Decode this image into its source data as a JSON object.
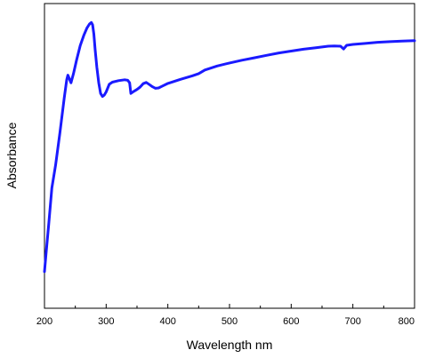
{
  "chart_data": {
    "type": "line",
    "title": "",
    "xlabel": "Wavelength nm",
    "ylabel": "Absorbance",
    "xlim": [
      200,
      800
    ],
    "ylim": [
      0,
      1
    ],
    "xticks": [
      200,
      300,
      400,
      500,
      600,
      700,
      800
    ],
    "y_tick_labels_shown": false,
    "grid": false,
    "legend": "none",
    "series": [
      {
        "color": "#1a1aff",
        "x": [
          200,
          203,
          207,
          212,
          218,
          225,
          232,
          236,
          238,
          240,
          243,
          247,
          252,
          258,
          264,
          269,
          273,
          276,
          278,
          280,
          282,
          285,
          288,
          291,
          294,
          297,
          300,
          305,
          310,
          320,
          330,
          335,
          338,
          340,
          342,
          345,
          350,
          355,
          360,
          365,
          370,
          375,
          380,
          385,
          390,
          400,
          420,
          440,
          450,
          460,
          480,
          500,
          520,
          540,
          560,
          580,
          600,
          620,
          640,
          660,
          670,
          680,
          685,
          690,
          700,
          720,
          740,
          760,
          780,
          800
        ],
        "y": [
          0.12,
          0.19,
          0.28,
          0.395,
          0.47,
          0.575,
          0.69,
          0.75,
          0.765,
          0.755,
          0.74,
          0.77,
          0.815,
          0.862,
          0.897,
          0.92,
          0.933,
          0.938,
          0.93,
          0.9,
          0.85,
          0.79,
          0.74,
          0.705,
          0.695,
          0.7,
          0.71,
          0.735,
          0.742,
          0.747,
          0.75,
          0.748,
          0.74,
          0.705,
          0.708,
          0.712,
          0.718,
          0.726,
          0.737,
          0.741,
          0.734,
          0.727,
          0.722,
          0.723,
          0.728,
          0.738,
          0.751,
          0.763,
          0.77,
          0.782,
          0.795,
          0.805,
          0.814,
          0.822,
          0.83,
          0.838,
          0.844,
          0.85,
          0.855,
          0.86,
          0.861,
          0.86,
          0.851,
          0.863,
          0.866,
          0.869,
          0.873,
          0.875,
          0.877,
          0.878
        ]
      }
    ]
  }
}
